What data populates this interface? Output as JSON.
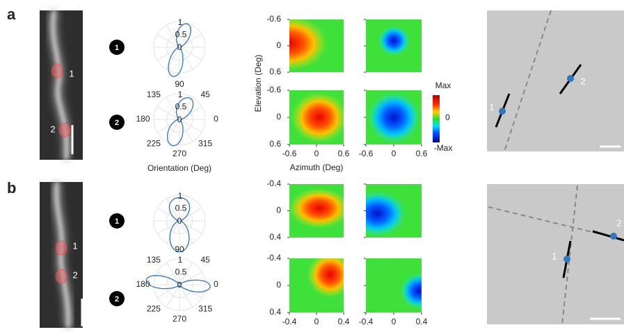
{
  "panels": [
    {
      "label": "a",
      "roi_labels": [
        "1",
        "2"
      ],
      "polar_plots": [
        {
          "badge": "1",
          "radial_ticks": [
            "1",
            "0.5",
            "0"
          ]
        },
        {
          "badge": "2",
          "radial_ticks": [
            "1",
            "0.5",
            "0"
          ],
          "angle_ticks": [
            "90",
            "45",
            "0",
            "315",
            "270",
            "225",
            "180",
            "135"
          ]
        }
      ],
      "polar_xlabel": "Orientation (Deg)",
      "heatmap": {
        "yticks": [
          "-0.6",
          "0",
          "0.6"
        ],
        "xticks": [
          "-0.6",
          "0",
          "0.6"
        ],
        "ylabel": "Elevation (Deg)",
        "xlabel": "Azimuth (Deg)"
      },
      "colorbar": [
        "Max",
        "0",
        "-Max"
      ],
      "map_labels": [
        "1",
        "2"
      ]
    },
    {
      "label": "b",
      "roi_labels": [
        "1",
        "2"
      ],
      "polar_plots": [
        {
          "badge": "1",
          "radial_ticks": [
            "1",
            "0.5",
            "0"
          ]
        },
        {
          "badge": "2",
          "radial_ticks": [
            "1",
            "0.5",
            "0"
          ],
          "angle_ticks": [
            "90",
            "45",
            "0",
            "315",
            "270",
            "225",
            "180",
            "135"
          ]
        }
      ],
      "heatmap": {
        "yticks": [
          "-0.4",
          "0",
          "0.4"
        ],
        "xticks": [
          "-0.4",
          "0",
          "0.4"
        ]
      },
      "map_labels": [
        "1",
        "2"
      ]
    }
  ]
}
